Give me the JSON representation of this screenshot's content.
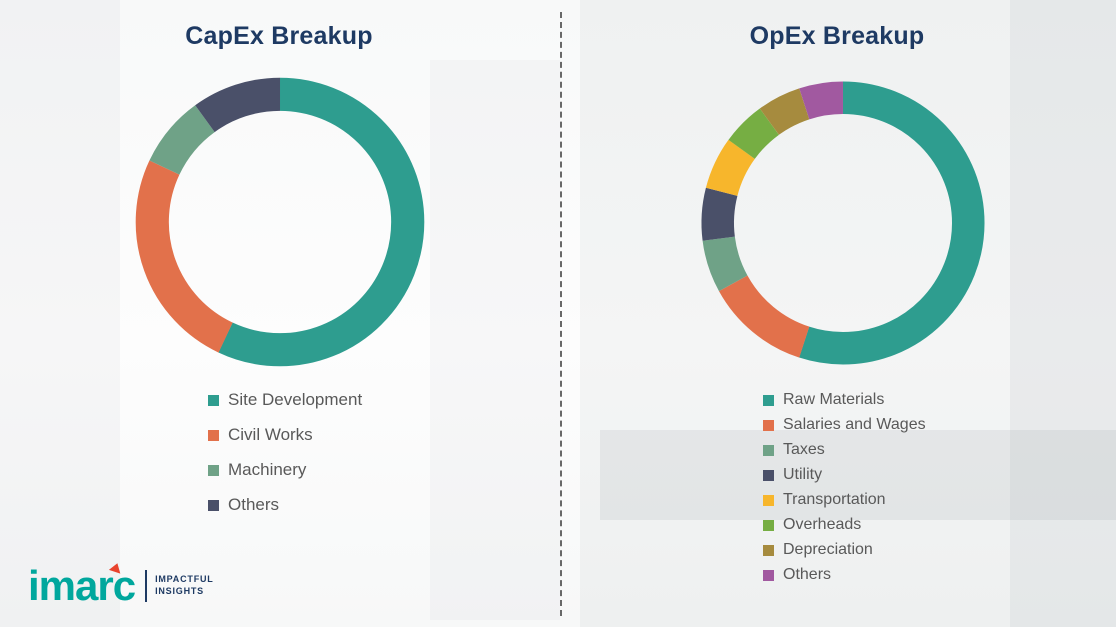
{
  "chart_data": [
    {
      "type": "pie",
      "subtype": "donut",
      "title": "CapEx Breakup",
      "labels": [
        "Site Development",
        "Civil Works",
        "Machinery",
        "Others"
      ],
      "values": [
        57,
        25,
        8,
        10
      ],
      "colors": [
        "#2E9D8F",
        "#E2714B",
        "#6FA287",
        "#4A5069"
      ],
      "legend_position": "bottom",
      "start_angle_deg": -90,
      "direction": "clockwise"
    },
    {
      "type": "pie",
      "subtype": "donut",
      "title": "OpEx Breakup",
      "labels": [
        "Raw Materials",
        "Salaries and Wages",
        "Taxes",
        "Utility",
        "Transportation",
        "Overheads",
        "Depreciation",
        "Others"
      ],
      "values": [
        55,
        12,
        6,
        6,
        6,
        5,
        5,
        5
      ],
      "colors": [
        "#2E9D8F",
        "#E2714B",
        "#6FA287",
        "#4A5069",
        "#F7B62C",
        "#76AE43",
        "#A68B3E",
        "#A159A0"
      ],
      "legend_position": "bottom",
      "start_angle_deg": -90,
      "direction": "clockwise"
    }
  ],
  "logo": {
    "name": "imarc",
    "tagline_line1": "IMPACTFUL",
    "tagline_line2": "INSIGHTS",
    "brand_color": "#00A79D",
    "accent_color": "#E8432D"
  },
  "divider": {
    "style": "dashed-vertical"
  }
}
